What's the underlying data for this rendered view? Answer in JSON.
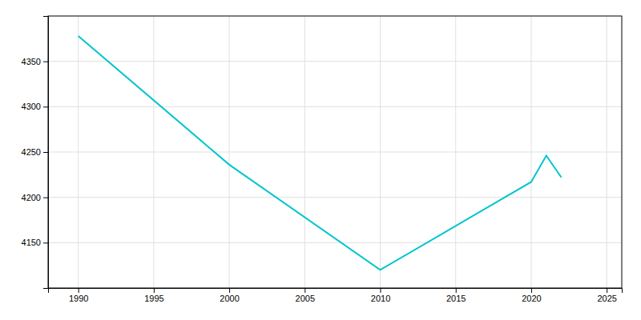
{
  "chart_data": {
    "type": "line",
    "x": [
      1990,
      2000,
      2010,
      2020,
      2021,
      2022
    ],
    "values": [
      4378,
      4236,
      4120,
      4217,
      4246,
      4222
    ],
    "color": "#00C5CD",
    "xlim": [
      1988,
      2026
    ],
    "ylim": [
      4100,
      4400
    ],
    "xticks": [
      1990,
      1995,
      2000,
      2005,
      2010,
      2015,
      2020,
      2025
    ],
    "yticks": [
      4150,
      4200,
      4250,
      4300,
      4350
    ],
    "grid": true
  }
}
